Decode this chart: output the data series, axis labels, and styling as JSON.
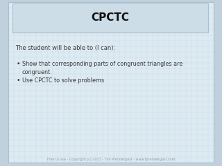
{
  "title": "CPCTC",
  "title_fontsize": 11,
  "header_bg": "#ccdde8",
  "header_border": "#a8bfcc",
  "slide_bg": "#ddeaf2",
  "outer_bg": "#c0d0dc",
  "subtitle": "The student will be able to (I can):",
  "subtitle_fontsize": 6.0,
  "bullet_point_1_line1": "Show that corresponding parts of congruent triangles are",
  "bullet_point_1_line2": "congruent.",
  "bullet_point_2": "Use CPCTC to solve problems",
  "bullet_fontsize": 5.8,
  "text_color": "#3a3a3a",
  "footer_text": "Free to use - Copyright (c) 2013 - Tim Prendergast - www.tprendergast.com",
  "footer_fontsize": 3.5,
  "footer_color": "#999999",
  "grid_color": "#b0c8d8",
  "grid_alpha": 0.6,
  "grid_step": 0.025
}
